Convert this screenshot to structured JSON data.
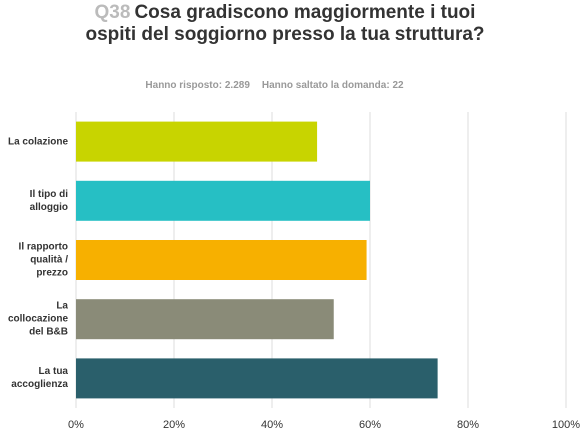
{
  "chart_data": {
    "type": "bar",
    "orientation": "horizontal",
    "question_number": "Q38",
    "title": "Cosa gradiscono maggiormente i tuoi ospiti del soggiorno presso la tua struttura?",
    "answered": "Hanno risposto: 2.289",
    "skipped": "Hanno saltato la domanda: 22",
    "categories": [
      "La colazione",
      "Il tipo di alloggio",
      "Il rapporto qualità / prezzo",
      "La collocazione del B&B",
      "La tua accoglienza"
    ],
    "values": [
      49.2,
      60.0,
      59.3,
      52.6,
      73.8
    ],
    "colors": [
      "#c8d400",
      "#26bfc4",
      "#f7b000",
      "#8a8b78",
      "#2a5f6b"
    ],
    "xlim": [
      0,
      100
    ],
    "xticks": [
      {
        "value": 0,
        "label": "0%"
      },
      {
        "value": 20,
        "label": "20%"
      },
      {
        "value": 40,
        "label": "40%"
      },
      {
        "value": 60,
        "label": "60%"
      },
      {
        "value": 80,
        "label": "80%"
      },
      {
        "value": 100,
        "label": "100%"
      }
    ],
    "grid": true
  }
}
